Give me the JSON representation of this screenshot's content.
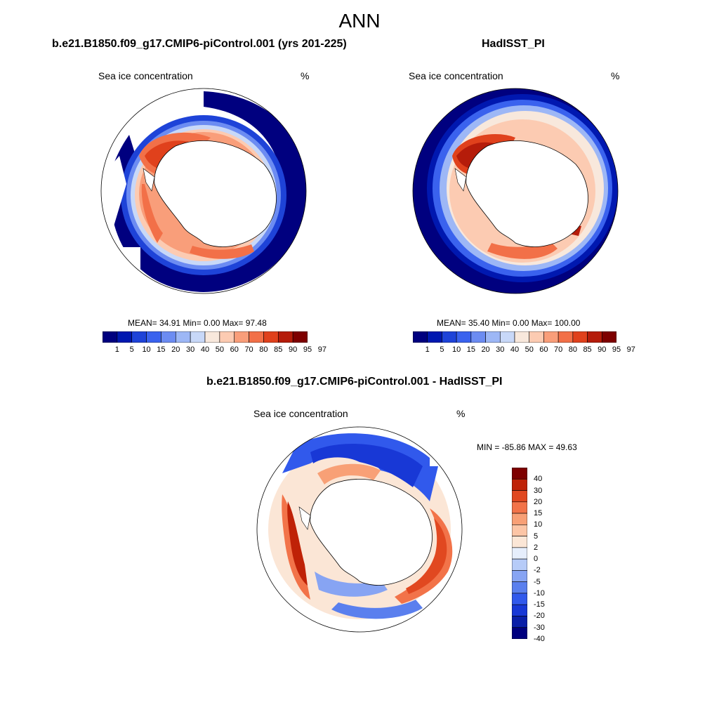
{
  "title": "ANN",
  "palette": {
    "twelve": [
      "#00007f",
      "#0018b0",
      "#1e43d8",
      "#3a62ee",
      "#6c8cf2",
      "#9db7f6",
      "#c8d8f8",
      "#f8e8dc",
      "#fccbb2",
      "#f99e7a",
      "#f27048",
      "#e0411c",
      "#b51c0a",
      "#7e0000"
    ],
    "diff": [
      "#00007f",
      "#0a1fa8",
      "#1838d6",
      "#3159ec",
      "#5a7fee",
      "#87a4f3",
      "#b6cbf8",
      "#e6eefc",
      "#fbe6d6",
      "#fcc5a6",
      "#f8a076",
      "#f27349",
      "#e14820",
      "#bf2207",
      "#7e0000"
    ]
  },
  "panels": [
    {
      "id": "model",
      "title": "b.e21.B1850.f09_g17.CMIP6-piControl.001 (yrs 201-225)",
      "variable": "Sea ice concentration",
      "unit": "%",
      "stats": "MEAN=  34.91  Min=   0.00  Max=  97.48",
      "colorbar_ticks": [
        "1",
        "5",
        "10",
        "15",
        "20",
        "30",
        "40",
        "50",
        "60",
        "70",
        "80",
        "85",
        "90",
        "95",
        "97"
      ]
    },
    {
      "id": "obs",
      "title": "HadISST_PI",
      "variable": "Sea ice concentration",
      "unit": "%",
      "stats": "MEAN=  35.40  Min=   0.00  Max= 100.00",
      "colorbar_ticks": [
        "1",
        "5",
        "10",
        "15",
        "20",
        "30",
        "40",
        "50",
        "60",
        "70",
        "80",
        "85",
        "90",
        "95",
        "97"
      ]
    },
    {
      "id": "diff",
      "title": "b.e21.B1850.f09_g17.CMIP6-piControl.001 - HadISST_PI",
      "variable": "Sea ice concentration",
      "unit": "%",
      "stats": "MIN = -85.86 MAX =  49.63",
      "colorbar_ticks": [
        "40",
        "30",
        "20",
        "15",
        "10",
        "5",
        "2",
        "0",
        "-2",
        "-5",
        "-10",
        "-15",
        "-20",
        "-30",
        "-40"
      ]
    }
  ]
}
